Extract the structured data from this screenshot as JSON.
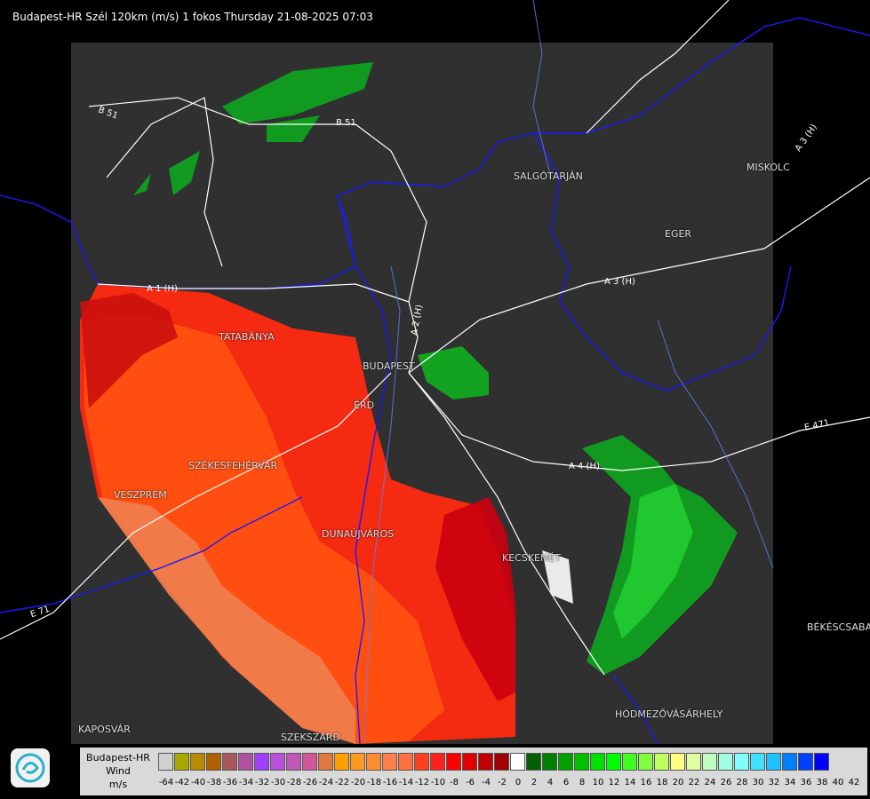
{
  "title": "Budapest-HR Szél 120km (m/s) 1 fokos Thursday 21-08-2025 07:03",
  "cities": [
    {
      "name": "SALGÓTARJÁN",
      "key": "salgotarjan"
    },
    {
      "name": "MISKOLC",
      "key": "miskolc"
    },
    {
      "name": "EGER",
      "key": "eger"
    },
    {
      "name": "TATABÁNYA",
      "key": "tatabanya"
    },
    {
      "name": "BUDAPEST",
      "key": "budapest"
    },
    {
      "name": "ÉRD",
      "key": "erd"
    },
    {
      "name": "SZÉKESFEHÉRVÁR",
      "key": "szekesfehervar"
    },
    {
      "name": "VESZPRÉM",
      "key": "veszprem"
    },
    {
      "name": "DUNAÚJVÁROS",
      "key": "dunaujvaros"
    },
    {
      "name": "KECSKEMÉT",
      "key": "kecskemet"
    },
    {
      "name": "BÉKÉSCSABA",
      "key": "bekescsaba"
    },
    {
      "name": "HÓDMEZŐVÁSÁRHELY",
      "key": "hodmezovasarhely"
    },
    {
      "name": "KAPOSVÁR",
      "key": "kaposvar"
    },
    {
      "name": "SZEKSZÁRD",
      "key": "szekszard"
    }
  ],
  "roads": [
    {
      "name": "B 51",
      "key": "b51a"
    },
    {
      "name": "B 51",
      "key": "b51b"
    },
    {
      "name": "A 1 (H)",
      "key": "a1"
    },
    {
      "name": "A 2 (H)",
      "key": "a2"
    },
    {
      "name": "A 3 (H)",
      "key": "a3"
    },
    {
      "name": "A 3 (H)",
      "key": "a3b"
    },
    {
      "name": "A 4 (H)",
      "key": "a4"
    },
    {
      "name": "E 71",
      "key": "e71"
    },
    {
      "name": "E 471",
      "key": "e471"
    }
  ],
  "legend": {
    "title_line1": "Budapest-HR",
    "title_line2": "Wind",
    "title_line3": "m/s",
    "colors": [
      "#d0d0d0",
      "#a8a800",
      "#b88a00",
      "#b06000",
      "#a85858",
      "#b050a0",
      "#a040ff",
      "#b850d8",
      "#c058b8",
      "#d05898",
      "#e07840",
      "#ffa000",
      "#ff9a20",
      "#ff8c30",
      "#ff8048",
      "#ff7040",
      "#ff4020",
      "#ff2020",
      "#ff0000",
      "#e00000",
      "#c00000",
      "#a00000",
      "#ffffff",
      "#006000",
      "#008000",
      "#00a000",
      "#00c000",
      "#00e000",
      "#00ff00",
      "#40ff20",
      "#80ff40",
      "#c0ff60",
      "#ffff80",
      "#e0ffa0",
      "#c0ffc0",
      "#a0ffe0",
      "#80ffff",
      "#40e0ff",
      "#20c0ff",
      "#0080ff",
      "#0040ff",
      "#0000ff"
    ],
    "ticks": [
      "-64",
      "-42",
      "-40",
      "-38",
      "-36",
      "-34",
      "-32",
      "-30",
      "-28",
      "-26",
      "-24",
      "-22",
      "-20",
      "-18",
      "-16",
      "-14",
      "-12",
      "-10",
      "-8",
      "-6",
      "-4",
      "-2",
      "0",
      "2",
      "4",
      "6",
      "8",
      "10",
      "12",
      "14",
      "16",
      "18",
      "20",
      "22",
      "24",
      "26",
      "28",
      "30",
      "32",
      "34",
      "36",
      "38",
      "40",
      "42"
    ]
  }
}
